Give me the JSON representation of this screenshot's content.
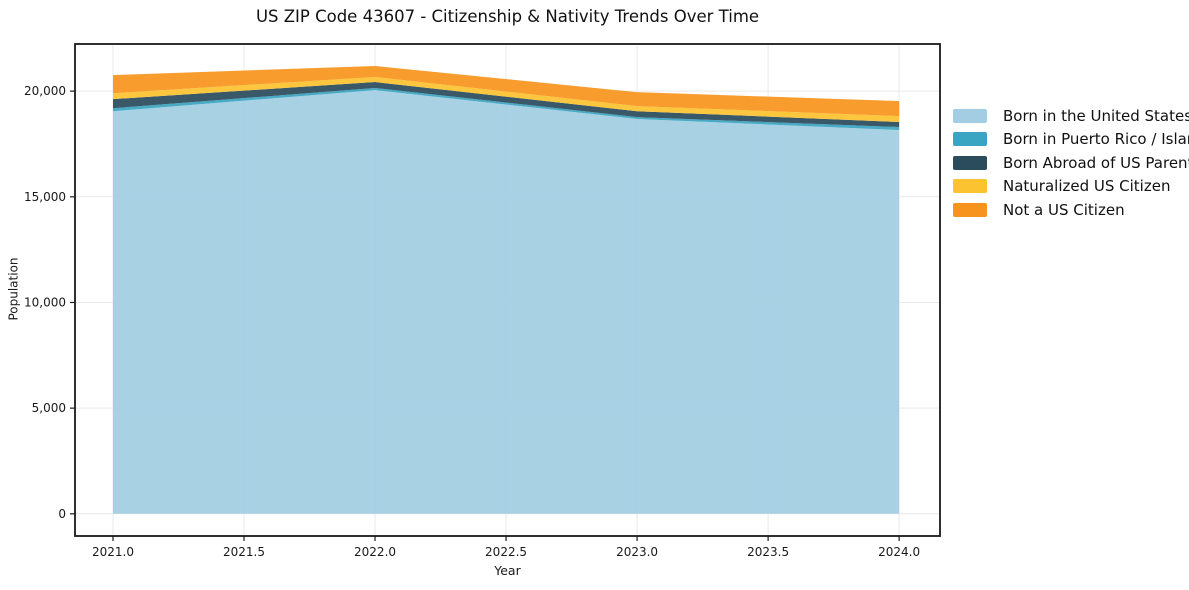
{
  "title": "US ZIP Code 43607 - Citizenship & Nativity Trends Over Time",
  "chart_data": {
    "type": "area",
    "stacked": true,
    "title": "US ZIP Code 43607 - Citizenship & Nativity Trends Over Time",
    "xlabel": "Year",
    "ylabel": "Population",
    "x": [
      2021,
      2022,
      2023,
      2024
    ],
    "series": [
      {
        "name": "Born in the United States",
        "color": "#a3cde2",
        "values": [
          19050,
          20050,
          18680,
          18160
        ]
      },
      {
        "name": "Born in Puerto Rico / Islands",
        "color": "#3aa5c2",
        "values": [
          140,
          100,
          90,
          140
        ]
      },
      {
        "name": "Born Abroad of US Parent(s)",
        "color": "#2b4c5c",
        "values": [
          430,
          280,
          280,
          240
        ]
      },
      {
        "name": "Naturalized US Citizen",
        "color": "#fcc330",
        "values": [
          280,
          240,
          240,
          280
        ]
      },
      {
        "name": "Not a US Citizen",
        "color": "#f7941e",
        "values": [
          860,
          520,
          660,
          710
        ]
      }
    ],
    "totals": [
      20760,
      21190,
      19950,
      19530
    ],
    "x_ticks": [
      2021.0,
      2021.5,
      2022.0,
      2022.5,
      2023.0,
      2023.5,
      2024.0
    ],
    "x_tick_labels": [
      "2021.0",
      "2021.5",
      "2022.0",
      "2022.5",
      "2023.0",
      "2023.5",
      "2024.0"
    ],
    "y_ticks": [
      0,
      5000,
      10000,
      15000,
      20000
    ],
    "y_tick_labels": [
      "0",
      "5,000",
      "10,000",
      "15,000",
      "20,000"
    ],
    "xlim": [
      2020.855,
      2024.156
    ],
    "ylim": [
      -1050,
      22230
    ],
    "grid": true,
    "legend_position": "right",
    "colors": {
      "spine": "#1a1a1a",
      "gridline": "#e9e9e9",
      "background": "#ffffff"
    }
  }
}
